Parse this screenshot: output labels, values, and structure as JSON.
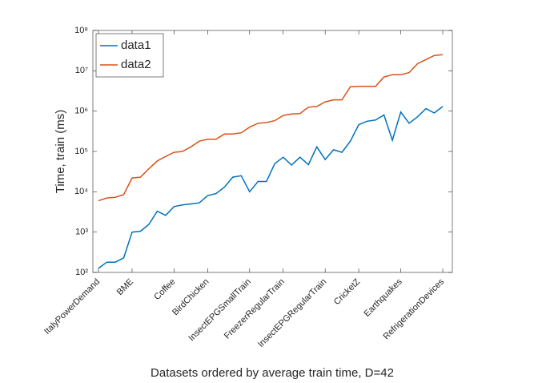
{
  "chart_data": {
    "type": "line",
    "xlabel": "Datasets ordered by average train time, D=42",
    "ylabel": "Time, train (ms)",
    "categories": [
      "ItalyPowerDemand",
      null,
      null,
      null,
      "BME",
      null,
      null,
      null,
      null,
      "Coffee",
      null,
      null,
      null,
      "BirdChicken",
      null,
      null,
      null,
      null,
      "InsectEPGSmallTrain",
      null,
      null,
      null,
      "FreezerRegularTrain",
      null,
      null,
      null,
      null,
      "InsectEPGRegularTrain",
      null,
      null,
      null,
      "CricketZ",
      null,
      null,
      null,
      null,
      "Earthquakes",
      null,
      null,
      null,
      null,
      "RefrigerationDevices"
    ],
    "series": [
      {
        "name": "data1",
        "color": "#0072bd",
        "values": [
          126,
          180,
          180,
          230,
          1000,
          1050,
          1550,
          3300,
          2600,
          4300,
          4700,
          5000,
          5300,
          8000,
          9000,
          13000,
          23000,
          25000,
          10000,
          18000,
          18000,
          50000,
          72000,
          46000,
          72000,
          47000,
          130000,
          63000,
          110000,
          95000,
          180000,
          460000,
          560000,
          600000,
          800000,
          190000,
          950000,
          500000,
          720000,
          1150000,
          900000,
          1300000
        ]
      },
      {
        "name": "data2",
        "color": "#d95319",
        "values": [
          6000,
          7000,
          7300,
          8500,
          22000,
          23000,
          37000,
          58000,
          75000,
          95000,
          100000,
          130000,
          180000,
          200000,
          200000,
          270000,
          270000,
          290000,
          400000,
          500000,
          520000,
          580000,
          780000,
          850000,
          870000,
          1250000,
          1300000,
          1700000,
          1900000,
          1900000,
          4000000,
          4100000,
          4100000,
          4100000,
          7000000,
          8000000,
          8000000,
          9000000,
          15000000,
          19000000,
          24000000,
          25000000
        ]
      }
    ],
    "ylim": [
      100,
      100000000
    ],
    "yticks": [
      {
        "value": 100,
        "label": "10²"
      },
      {
        "value": 1000,
        "label": "10³"
      },
      {
        "value": 10000,
        "label": "10⁴"
      },
      {
        "value": 100000,
        "label": "10⁵"
      },
      {
        "value": 1000000,
        "label": "10⁶"
      },
      {
        "value": 10000000,
        "label": "10⁷"
      },
      {
        "value": 100000000,
        "label": "10⁸"
      }
    ],
    "yscale": "log",
    "grid": false,
    "legend": "upper-left"
  }
}
